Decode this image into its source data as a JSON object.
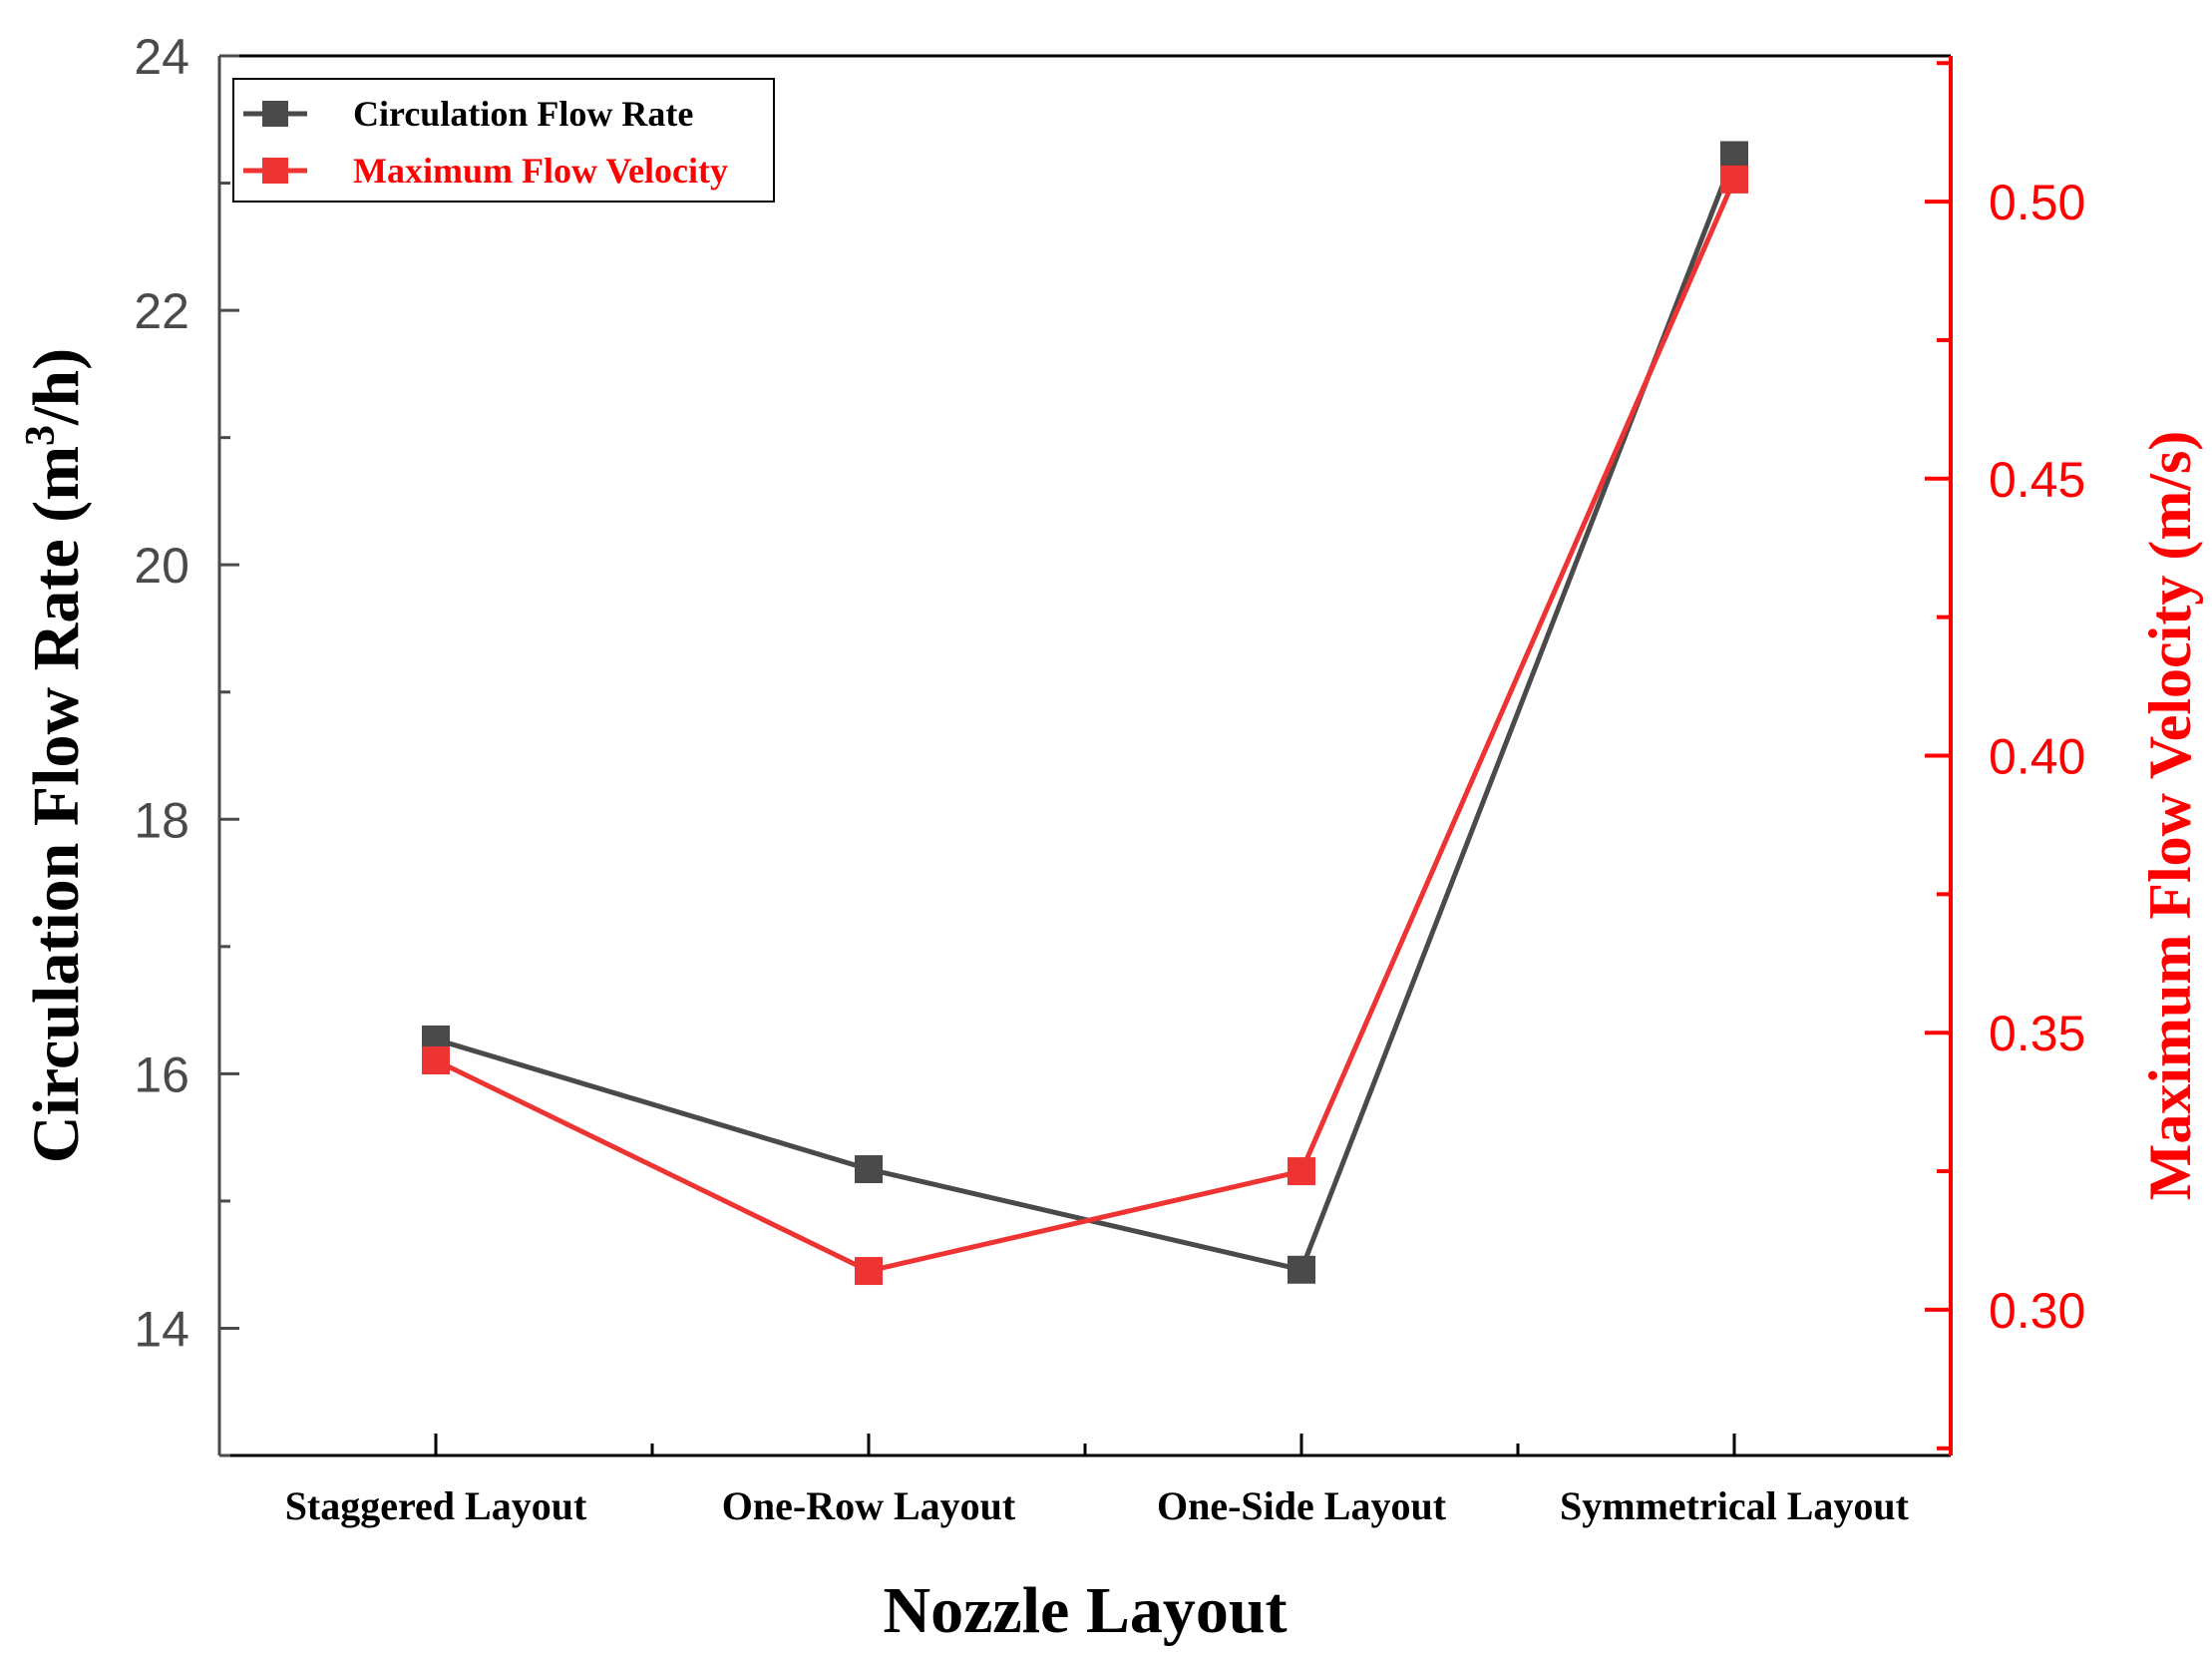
{
  "chart_data": {
    "type": "line",
    "categories": [
      "Staggered Layout",
      "One-Row Layout",
      "One-Side Layout",
      "Symmetrical Layout"
    ],
    "xlabel": "Nozzle Layout",
    "ylabel_left": {
      "main": "Circulation Flow Rate (m",
      "sup": "3",
      "end": "/h)"
    },
    "ylabel_right": "Maximum Flow Velocity (m/s)",
    "y_left": {
      "lim": [
        13,
        24
      ],
      "ticks": [
        14,
        16,
        18,
        20,
        22,
        24
      ],
      "tick_labels": [
        "14",
        "16",
        "18",
        "20",
        "22",
        "24"
      ]
    },
    "y_right": {
      "lim": [
        0.2737,
        0.5263
      ],
      "ticks": [
        0.3,
        0.35,
        0.4,
        0.45,
        0.5
      ],
      "tick_labels": [
        "0.30",
        "0.35",
        "0.40",
        "0.45",
        "0.50"
      ]
    },
    "series": [
      {
        "name": "Circulation Flow Rate",
        "axis": "left",
        "color": "#4a4a4a",
        "values": [
          16.27,
          15.25,
          14.46,
          23.22
        ]
      },
      {
        "name": "Maximum Flow Velocity",
        "axis": "right",
        "color": "#ee3333",
        "values": [
          0.345,
          0.307,
          0.325,
          0.504
        ]
      }
    ],
    "legend": "top-left",
    "grid": false,
    "colors": {
      "left_axis": "#4a4a4a",
      "right_axis": "#ff0000",
      "text": "#000000"
    }
  }
}
